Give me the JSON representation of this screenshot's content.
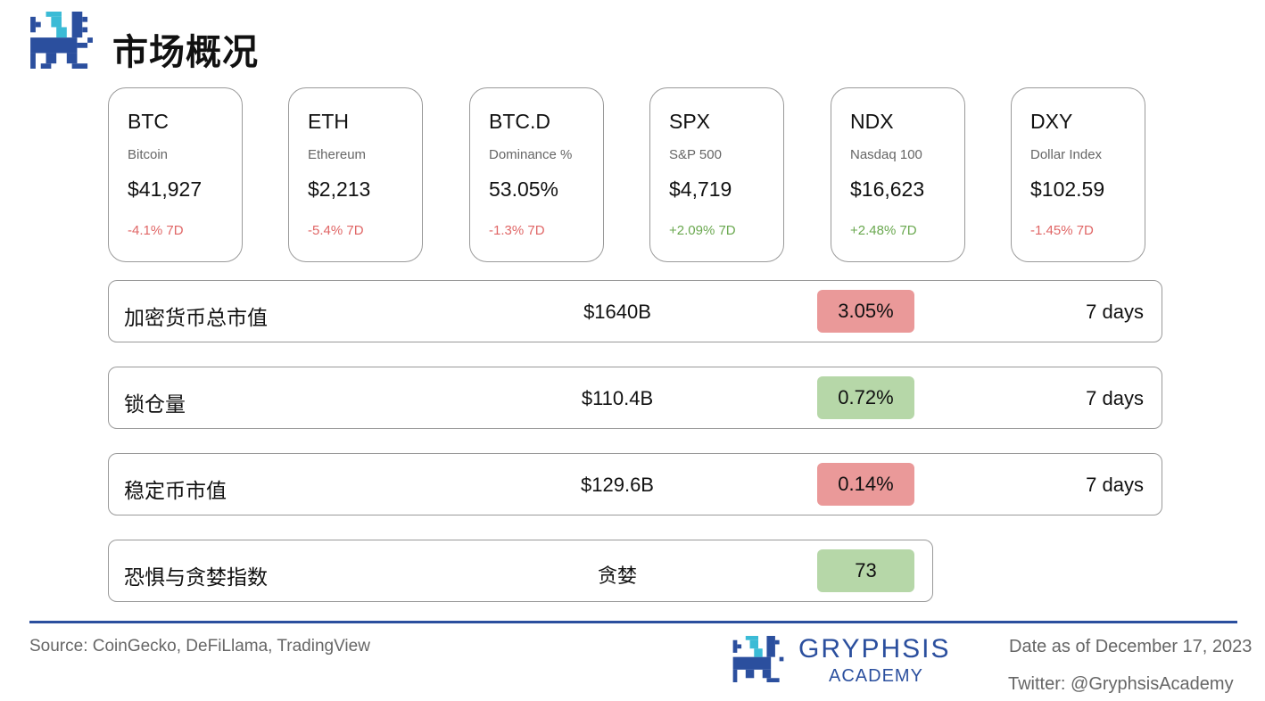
{
  "header": {
    "title": "市场概况",
    "logo": "gryphsis-pixel-gryphon"
  },
  "colors": {
    "negative": "#e06666",
    "positive": "#6aa84f",
    "badge_red": "#ea9999",
    "badge_green": "#b6d7a8",
    "brand": "#2b4f9e",
    "accent": "#3bbbd6"
  },
  "cards": [
    {
      "symbol": "BTC",
      "name": "Bitcoin",
      "price": "$41,927",
      "change": "-4.1% 7D",
      "trend": "negative"
    },
    {
      "symbol": "ETH",
      "name": "Ethereum",
      "price": "$2,213",
      "change": "-5.4% 7D",
      "trend": "negative"
    },
    {
      "symbol": "BTC.D",
      "name": "Dominance %",
      "price": "53.05%",
      "change": "-1.3% 7D",
      "trend": "negative"
    },
    {
      "symbol": "SPX",
      "name": "S&P 500",
      "price": "$4,719",
      "change": "+2.09% 7D",
      "trend": "positive"
    },
    {
      "symbol": "NDX",
      "name": "Nasdaq 100",
      "price": "$16,623",
      "change": "+2.48% 7D",
      "trend": "positive"
    },
    {
      "symbol": "DXY",
      "name": "Dollar Index",
      "price": "$102.59",
      "change": "-1.45% 7D",
      "trend": "negative"
    }
  ],
  "rows": [
    {
      "label": "加密货币总市值",
      "value": "$1640B",
      "badge": "3.05%",
      "trend": "negative",
      "period": "7 days"
    },
    {
      "label": "锁仓量",
      "value": "$110.4B",
      "badge": "0.72%",
      "trend": "positive",
      "period": "7 days"
    },
    {
      "label": "稳定币市值",
      "value": "$129.6B",
      "badge": "0.14%",
      "trend": "negative",
      "period": "7 days"
    },
    {
      "label": "恐惧与贪婪指数",
      "value": "贪婪",
      "badge": "73",
      "trend": "positive"
    }
  ],
  "footer": {
    "source": "Source: CoinGecko, DeFiLlama, TradingView",
    "brand_name": "GRYPHSIS",
    "brand_sub": "ACADEMY",
    "date": "Date as of December 17, 2023",
    "twitter": "Twitter: @GryphsisAcademy"
  }
}
